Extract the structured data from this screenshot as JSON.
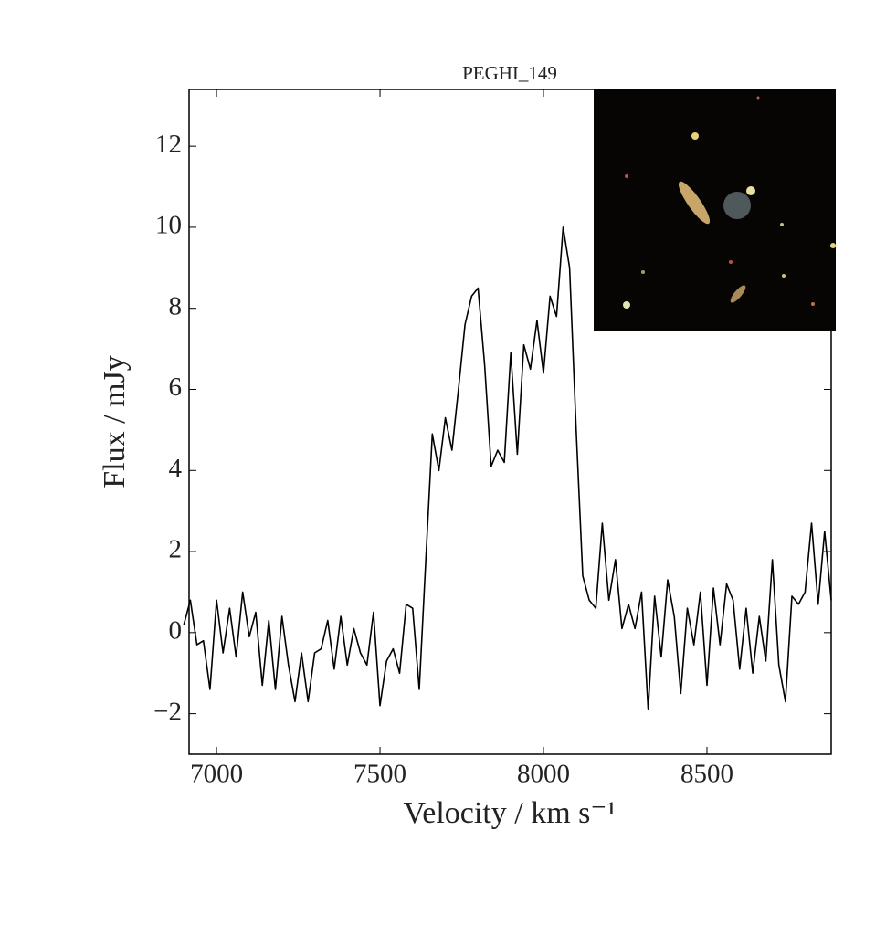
{
  "chart_data": {
    "type": "line",
    "title": "PEGHI_149",
    "x_label": "Velocity / km s⁻¹",
    "y_label": "Flux / mJy",
    "color": "#000000",
    "x": [
      6900,
      6920,
      6940,
      6960,
      6980,
      7000,
      7020,
      7040,
      7060,
      7080,
      7100,
      7120,
      7140,
      7160,
      7180,
      7200,
      7220,
      7240,
      7260,
      7280,
      7300,
      7320,
      7340,
      7360,
      7380,
      7400,
      7420,
      7440,
      7460,
      7480,
      7500,
      7520,
      7540,
      7560,
      7580,
      7600,
      7620,
      7640,
      7660,
      7680,
      7700,
      7720,
      7740,
      7760,
      7780,
      7800,
      7820,
      7840,
      7860,
      7880,
      7900,
      7920,
      7940,
      7960,
      7980,
      8000,
      8020,
      8040,
      8060,
      8080,
      8100,
      8120,
      8140,
      8160,
      8180,
      8200,
      8220,
      8240,
      8260,
      8280,
      8300,
      8320,
      8340,
      8360,
      8380,
      8400,
      8420,
      8440,
      8460,
      8480,
      8500,
      8520,
      8540,
      8560,
      8580,
      8600,
      8620,
      8640,
      8660,
      8680,
      8700,
      8720,
      8740,
      8760,
      8780,
      8800,
      8820,
      8840,
      8860,
      8880
    ],
    "values": [
      0.2,
      0.8,
      -0.3,
      -0.2,
      -1.4,
      0.8,
      -0.5,
      0.6,
      -0.6,
      1.0,
      -0.1,
      0.5,
      -1.3,
      0.3,
      -1.4,
      0.4,
      -0.8,
      -1.7,
      -0.5,
      -1.7,
      -0.5,
      -0.4,
      0.3,
      -0.9,
      0.4,
      -0.8,
      0.1,
      -0.5,
      -0.8,
      0.5,
      -1.8,
      -0.7,
      -0.4,
      -1.0,
      0.7,
      0.6,
      -1.4,
      1.8,
      4.9,
      4.0,
      5.3,
      4.5,
      6.0,
      7.6,
      8.3,
      8.5,
      6.6,
      4.1,
      4.5,
      4.2,
      6.9,
      4.4,
      7.1,
      6.5,
      7.7,
      6.4,
      8.3,
      7.8,
      10.0,
      9.0,
      5.0,
      1.4,
      0.8,
      0.6,
      2.7,
      0.8,
      1.8,
      0.1,
      0.7,
      0.1,
      1.0,
      -1.9,
      0.9,
      -0.6,
      1.3,
      0.4,
      -1.5,
      0.6,
      -0.3,
      1.0,
      -1.3,
      1.1,
      -0.3,
      1.2,
      0.8,
      -0.9,
      0.6,
      -1.0,
      0.4,
      -0.7,
      1.8,
      -0.8,
      -1.7,
      0.9,
      0.7,
      1.0,
      2.7,
      0.7,
      2.5,
      0.8
    ],
    "xlim": [
      6916,
      8880
    ],
    "xticks": [
      7000,
      7500,
      8000,
      8500
    ],
    "ylim": [
      -3,
      13.4
    ],
    "yticks": [
      {
        "value": -2,
        "label": "−2"
      },
      0,
      2,
      4,
      6,
      8,
      10,
      12
    ]
  }
}
